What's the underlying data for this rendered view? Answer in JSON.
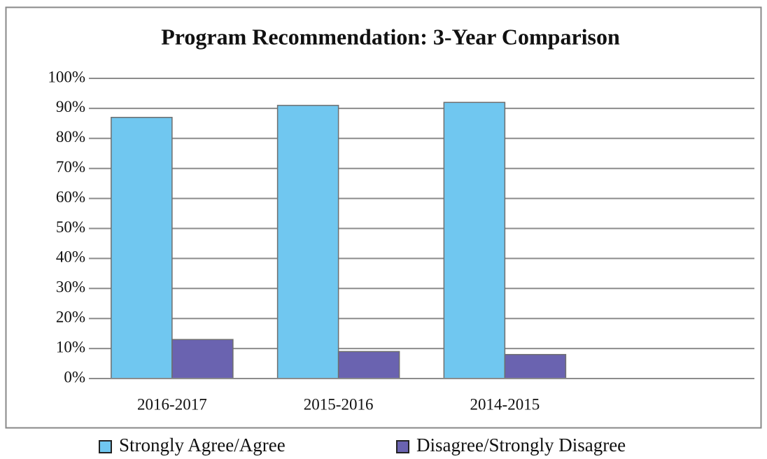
{
  "chart_data": {
    "type": "bar",
    "title": "Program Recommendation: 3-Year Comparison",
    "categories": [
      "2016-2017",
      "2015-2016",
      "2014-2015",
      null
    ],
    "series": [
      {
        "name": "Strongly Agree/Agree",
        "color": "#70c7f0",
        "values": [
          87,
          91,
          92,
          null
        ]
      },
      {
        "name": "Disagree/Strongly Disagree",
        "color": "#6a63b0",
        "values": [
          13,
          9,
          8,
          null
        ]
      }
    ],
    "ylim": [
      0,
      100
    ],
    "yticks": [
      {
        "value": 0,
        "label": "0%"
      },
      {
        "value": 10,
        "label": "10%"
      },
      {
        "value": 20,
        "label": "20%"
      },
      {
        "value": 30,
        "label": "30%"
      },
      {
        "value": 40,
        "label": "40%"
      },
      {
        "value": 50,
        "label": "50%"
      },
      {
        "value": 60,
        "label": "60%"
      },
      {
        "value": 70,
        "label": "70%"
      },
      {
        "value": 80,
        "label": "80%"
      },
      {
        "value": 90,
        "label": "90%"
      },
      {
        "value": 100,
        "label": "100%"
      }
    ],
    "grid": true,
    "legend": "bottom"
  }
}
